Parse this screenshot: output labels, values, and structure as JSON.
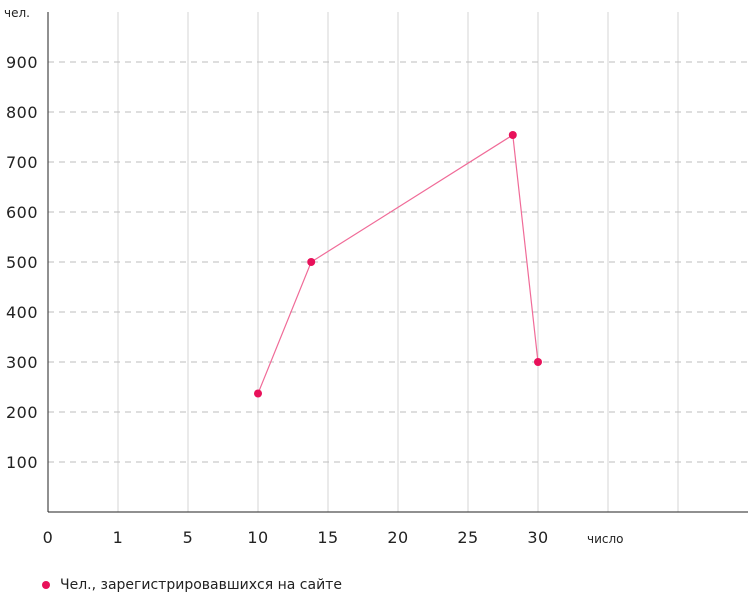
{
  "chart_data": {
    "type": "line",
    "x_tick_labels": [
      "0",
      "1",
      "5",
      "10",
      "15",
      "20",
      "25",
      "30"
    ],
    "x_unit_label": "число",
    "y_unit_label": "чел.",
    "y_ticks": [
      100,
      200,
      300,
      400,
      500,
      600,
      700,
      800,
      900
    ],
    "ylim": [
      0,
      1000
    ],
    "grid": true,
    "series": [
      {
        "name": "Чел., зарегистрировавшихся на сайте",
        "color": "#e8115a",
        "points": [
          {
            "x": 10,
            "y": 237
          },
          {
            "x": 13.8,
            "y": 500
          },
          {
            "x": 28.2,
            "y": 754
          },
          {
            "x": 30,
            "y": 300
          }
        ]
      }
    ],
    "legend_position": "bottom-left"
  }
}
